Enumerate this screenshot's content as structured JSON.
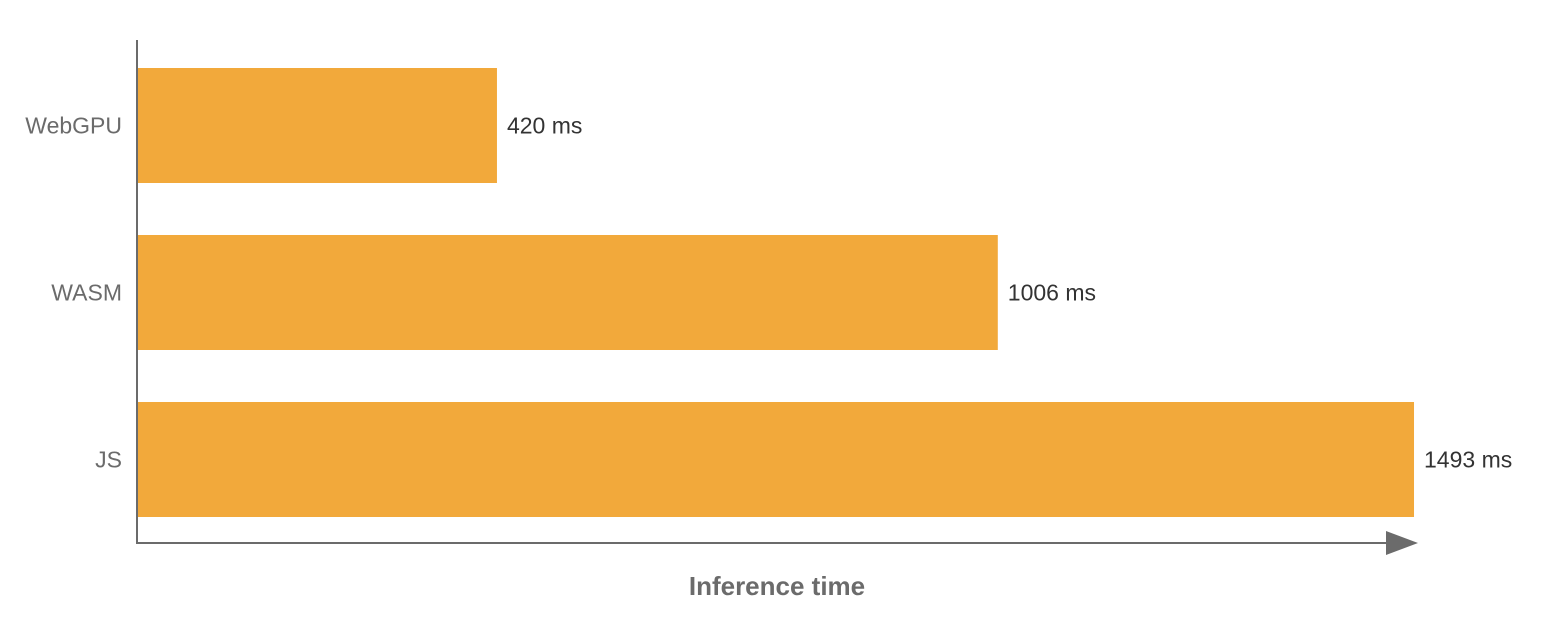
{
  "chart_data": {
    "type": "bar",
    "orientation": "horizontal",
    "categories": [
      "WebGPU",
      "WASM",
      "JS"
    ],
    "values": [
      420,
      1006,
      1493
    ],
    "data_labels": [
      "420 ms",
      "1006 ms",
      "1493 ms"
    ],
    "title": "",
    "xlabel": "Inference time",
    "ylabel": "",
    "xlim": [
      0,
      1500
    ],
    "grid": false,
    "legend": "none",
    "colors": {
      "bar": "#f2a93b",
      "axis": "#6b6b6b"
    }
  }
}
